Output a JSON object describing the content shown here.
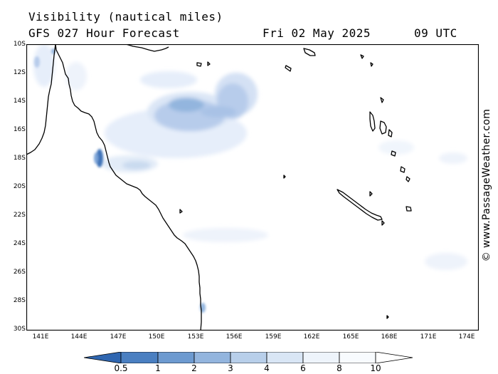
{
  "header": {
    "title": "Visibility (nautical miles)",
    "model": "GFS 027 Hour Forecast",
    "date": "Fri 02 May 2025",
    "time": "09 UTC"
  },
  "map": {
    "lat_labels": [
      "10S",
      "12S",
      "14S",
      "16S",
      "18S",
      "20S",
      "22S",
      "24S",
      "26S",
      "28S",
      "30S"
    ],
    "lon_labels": [
      "141E",
      "144E",
      "147E",
      "150E",
      "153E",
      "156E",
      "159E",
      "162E",
      "165E",
      "168E",
      "171E",
      "174E"
    ],
    "coast_color": "#000000",
    "colors": {
      "fog_light": "#e6eefa",
      "fog_mid": "#b7cceb",
      "fog_dark": "#7ea6d9",
      "fog_darkest": "#3f73b8"
    }
  },
  "legend": {
    "labels": [
      "0.5",
      "1",
      "2",
      "3",
      "4",
      "6",
      "8",
      "10"
    ],
    "colors": [
      "#2f66b0",
      "#4a7fc1",
      "#6d9ad0",
      "#93b5de",
      "#b8cfea",
      "#d9e6f5",
      "#eef4fb",
      "#ffffff"
    ]
  },
  "credit": "© www.PassageWeather.com"
}
